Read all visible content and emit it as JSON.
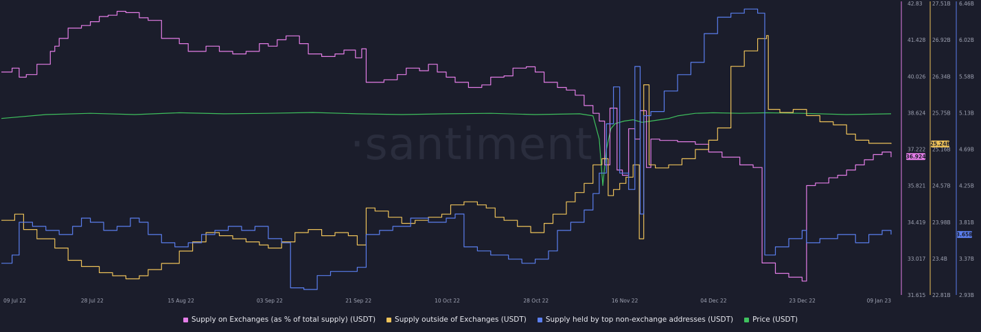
{
  "watermark": "·santiment",
  "chart_data": {
    "type": "line",
    "x_tick_labels": [
      "09 Jul 22",
      "28 Jul 22",
      "15 Aug 22",
      "03 Sep 22",
      "21 Sep 22",
      "10 Oct 22",
      "28 Oct 22",
      "16 Nov 22",
      "04 Dec 22",
      "23 Dec 22",
      "09 Jan 23"
    ],
    "axes": {
      "exchange_pct": {
        "ticks": [
          "42.83",
          "41.428",
          "40.026",
          "38.624",
          "37.222",
          "35.821",
          "34.419",
          "33.017",
          "31.615"
        ],
        "ylim": [
          31.615,
          42.83
        ]
      },
      "outside_supply": {
        "ticks": [
          "27.51B",
          "26.92B",
          "26.34B",
          "25.75B",
          "25.16B",
          "24.57B",
          "23.98B",
          "23.4B",
          "22.81B"
        ],
        "ylim": [
          22.81,
          27.51
        ],
        "unit": "B"
      },
      "top_holders": {
        "ticks": [
          "6.46B",
          "6.02B",
          "5.58B",
          "5.13B",
          "4.69B",
          "4.25B",
          "3.81B",
          "3.37B",
          "2.93B"
        ],
        "ylim": [
          2.93,
          6.46
        ],
        "unit": "B"
      }
    },
    "last_value_badges": {
      "exchange_pct": "36.924",
      "outside_supply": "25.24B",
      "top_holders": "3.65B"
    },
    "series": [
      {
        "name": "Supply on Exchanges (as % of total supply) (USDT)",
        "color": "#e57ee8",
        "axis": "exchange_pct",
        "points": [
          [
            0,
            40.2
          ],
          [
            0.012,
            40.35
          ],
          [
            0.02,
            40.0
          ],
          [
            0.028,
            40.1
          ],
          [
            0.04,
            40.5
          ],
          [
            0.055,
            41.0
          ],
          [
            0.06,
            41.2
          ],
          [
            0.065,
            41.5
          ],
          [
            0.075,
            41.9
          ],
          [
            0.09,
            42.0
          ],
          [
            0.1,
            42.15
          ],
          [
            0.11,
            42.35
          ],
          [
            0.12,
            42.4
          ],
          [
            0.13,
            42.55
          ],
          [
            0.14,
            42.5
          ],
          [
            0.155,
            42.3
          ],
          [
            0.165,
            42.2
          ],
          [
            0.18,
            41.5
          ],
          [
            0.2,
            41.3
          ],
          [
            0.21,
            41.0
          ],
          [
            0.23,
            41.2
          ],
          [
            0.245,
            41.0
          ],
          [
            0.26,
            40.9
          ],
          [
            0.275,
            41.0
          ],
          [
            0.29,
            41.3
          ],
          [
            0.3,
            41.2
          ],
          [
            0.31,
            41.45
          ],
          [
            0.32,
            41.6
          ],
          [
            0.335,
            41.3
          ],
          [
            0.345,
            40.9
          ],
          [
            0.36,
            40.8
          ],
          [
            0.375,
            40.9
          ],
          [
            0.385,
            41.05
          ],
          [
            0.398,
            40.75
          ],
          [
            0.405,
            41.1
          ],
          [
            0.41,
            39.8
          ],
          [
            0.43,
            39.9
          ],
          [
            0.445,
            40.1
          ],
          [
            0.455,
            40.35
          ],
          [
            0.47,
            40.25
          ],
          [
            0.48,
            40.5
          ],
          [
            0.49,
            40.2
          ],
          [
            0.5,
            40.0
          ],
          [
            0.51,
            39.8
          ],
          [
            0.525,
            39.6
          ],
          [
            0.54,
            39.7
          ],
          [
            0.55,
            40.0
          ],
          [
            0.565,
            40.05
          ],
          [
            0.575,
            40.35
          ],
          [
            0.59,
            40.4
          ],
          [
            0.6,
            40.2
          ],
          [
            0.61,
            39.8
          ],
          [
            0.625,
            39.6
          ],
          [
            0.635,
            39.5
          ],
          [
            0.645,
            39.3
          ],
          [
            0.655,
            38.9
          ],
          [
            0.665,
            38.6
          ],
          [
            0.672,
            38.3
          ],
          [
            0.678,
            36.6
          ],
          [
            0.684,
            38.8
          ],
          [
            0.692,
            36.4
          ],
          [
            0.698,
            36.2
          ],
          [
            0.705,
            38.0
          ],
          [
            0.712,
            37.6
          ],
          [
            0.718,
            38.7
          ],
          [
            0.725,
            36.5
          ],
          [
            0.73,
            37.6
          ],
          [
            0.74,
            37.55
          ],
          [
            0.76,
            37.5
          ],
          [
            0.78,
            37.4
          ],
          [
            0.795,
            37.1
          ],
          [
            0.81,
            36.9
          ],
          [
            0.83,
            36.6
          ],
          [
            0.845,
            36.5
          ],
          [
            0.855,
            32.8
          ],
          [
            0.87,
            32.4
          ],
          [
            0.885,
            32.25
          ],
          [
            0.9,
            32.1
          ],
          [
            0.905,
            35.8
          ],
          [
            0.915,
            35.9
          ],
          [
            0.93,
            36.1
          ],
          [
            0.94,
            36.2
          ],
          [
            0.95,
            36.4
          ],
          [
            0.96,
            36.6
          ],
          [
            0.97,
            36.8
          ],
          [
            0.98,
            37.0
          ],
          [
            0.99,
            37.1
          ],
          [
            1.0,
            36.9
          ]
        ]
      },
      {
        "name": "Supply outside of Exchanges (USDT)",
        "color": "#efc35a",
        "axis": "outside_supply",
        "points": [
          [
            0,
            24.0
          ],
          [
            0.015,
            24.1
          ],
          [
            0.025,
            23.85
          ],
          [
            0.04,
            23.7
          ],
          [
            0.06,
            23.55
          ],
          [
            0.075,
            23.35
          ],
          [
            0.09,
            23.25
          ],
          [
            0.11,
            23.15
          ],
          [
            0.125,
            23.1
          ],
          [
            0.14,
            23.05
          ],
          [
            0.155,
            23.1
          ],
          [
            0.165,
            23.2
          ],
          [
            0.18,
            23.3
          ],
          [
            0.2,
            23.5
          ],
          [
            0.215,
            23.65
          ],
          [
            0.23,
            23.8
          ],
          [
            0.245,
            23.75
          ],
          [
            0.26,
            23.7
          ],
          [
            0.275,
            23.65
          ],
          [
            0.29,
            23.6
          ],
          [
            0.3,
            23.55
          ],
          [
            0.315,
            23.65
          ],
          [
            0.33,
            23.8
          ],
          [
            0.345,
            23.85
          ],
          [
            0.36,
            23.75
          ],
          [
            0.375,
            23.8
          ],
          [
            0.39,
            23.75
          ],
          [
            0.4,
            23.6
          ],
          [
            0.41,
            24.2
          ],
          [
            0.42,
            24.15
          ],
          [
            0.435,
            24.05
          ],
          [
            0.45,
            23.95
          ],
          [
            0.465,
            24.0
          ],
          [
            0.48,
            24.05
          ],
          [
            0.495,
            24.1
          ],
          [
            0.505,
            24.25
          ],
          [
            0.52,
            24.3
          ],
          [
            0.535,
            24.25
          ],
          [
            0.545,
            24.2
          ],
          [
            0.555,
            24.05
          ],
          [
            0.565,
            24.0
          ],
          [
            0.58,
            23.9
          ],
          [
            0.595,
            23.8
          ],
          [
            0.61,
            23.95
          ],
          [
            0.62,
            24.1
          ],
          [
            0.635,
            24.3
          ],
          [
            0.645,
            24.45
          ],
          [
            0.655,
            24.6
          ],
          [
            0.665,
            24.9
          ],
          [
            0.675,
            25.0
          ],
          [
            0.682,
            24.4
          ],
          [
            0.688,
            24.5
          ],
          [
            0.695,
            24.6
          ],
          [
            0.702,
            24.7
          ],
          [
            0.71,
            24.9
          ],
          [
            0.717,
            23.7
          ],
          [
            0.722,
            26.2
          ],
          [
            0.728,
            24.9
          ],
          [
            0.735,
            24.85
          ],
          [
            0.75,
            24.9
          ],
          [
            0.765,
            25.0
          ],
          [
            0.78,
            25.15
          ],
          [
            0.795,
            25.3
          ],
          [
            0.805,
            25.5
          ],
          [
            0.82,
            26.5
          ],
          [
            0.835,
            26.75
          ],
          [
            0.85,
            26.95
          ],
          [
            0.86,
            27.0
          ],
          [
            0.862,
            25.8
          ],
          [
            0.875,
            25.75
          ],
          [
            0.89,
            25.8
          ],
          [
            0.905,
            25.7
          ],
          [
            0.92,
            25.6
          ],
          [
            0.935,
            25.55
          ],
          [
            0.95,
            25.4
          ],
          [
            0.96,
            25.3
          ],
          [
            0.975,
            25.25
          ],
          [
            0.99,
            25.25
          ],
          [
            1.0,
            25.24
          ]
        ]
      },
      {
        "name": "Supply held by top non-exchange addresses (USDT)",
        "color": "#5b7ff0",
        "axis": "top_holders",
        "points": [
          [
            0,
            3.3
          ],
          [
            0.012,
            3.4
          ],
          [
            0.02,
            3.8
          ],
          [
            0.035,
            3.75
          ],
          [
            0.05,
            3.7
          ],
          [
            0.065,
            3.65
          ],
          [
            0.08,
            3.75
          ],
          [
            0.09,
            3.85
          ],
          [
            0.1,
            3.8
          ],
          [
            0.115,
            3.7
          ],
          [
            0.13,
            3.75
          ],
          [
            0.145,
            3.85
          ],
          [
            0.155,
            3.8
          ],
          [
            0.165,
            3.65
          ],
          [
            0.18,
            3.55
          ],
          [
            0.195,
            3.5
          ],
          [
            0.21,
            3.55
          ],
          [
            0.225,
            3.65
          ],
          [
            0.24,
            3.7
          ],
          [
            0.255,
            3.75
          ],
          [
            0.27,
            3.7
          ],
          [
            0.285,
            3.75
          ],
          [
            0.3,
            3.6
          ],
          [
            0.315,
            3.55
          ],
          [
            0.325,
            3.0
          ],
          [
            0.34,
            2.98
          ],
          [
            0.355,
            3.15
          ],
          [
            0.37,
            3.2
          ],
          [
            0.385,
            3.2
          ],
          [
            0.4,
            3.25
          ],
          [
            0.41,
            3.65
          ],
          [
            0.425,
            3.7
          ],
          [
            0.44,
            3.75
          ],
          [
            0.46,
            3.85
          ],
          [
            0.48,
            3.8
          ],
          [
            0.5,
            3.85
          ],
          [
            0.51,
            3.9
          ],
          [
            0.52,
            3.5
          ],
          [
            0.535,
            3.45
          ],
          [
            0.55,
            3.4
          ],
          [
            0.57,
            3.35
          ],
          [
            0.585,
            3.3
          ],
          [
            0.6,
            3.35
          ],
          [
            0.615,
            3.45
          ],
          [
            0.625,
            3.7
          ],
          [
            0.64,
            3.8
          ],
          [
            0.655,
            3.95
          ],
          [
            0.665,
            4.15
          ],
          [
            0.672,
            4.4
          ],
          [
            0.68,
            5.0
          ],
          [
            0.688,
            5.45
          ],
          [
            0.695,
            4.4
          ],
          [
            0.705,
            4.2
          ],
          [
            0.712,
            5.7
          ],
          [
            0.718,
            3.9
          ],
          [
            0.722,
            5.1
          ],
          [
            0.73,
            5.15
          ],
          [
            0.745,
            5.4
          ],
          [
            0.76,
            5.6
          ],
          [
            0.775,
            5.75
          ],
          [
            0.79,
            6.1
          ],
          [
            0.805,
            6.3
          ],
          [
            0.82,
            6.35
          ],
          [
            0.835,
            6.4
          ],
          [
            0.85,
            6.35
          ],
          [
            0.858,
            3.4
          ],
          [
            0.87,
            3.5
          ],
          [
            0.885,
            3.6
          ],
          [
            0.9,
            3.7
          ],
          [
            0.905,
            3.55
          ],
          [
            0.92,
            3.6
          ],
          [
            0.94,
            3.65
          ],
          [
            0.96,
            3.55
          ],
          [
            0.975,
            3.65
          ],
          [
            0.99,
            3.7
          ],
          [
            1.0,
            3.65
          ]
        ]
      },
      {
        "name": "Price (USDT)",
        "color": "#3fc25e",
        "axis": "price",
        "points": [
          [
            0,
            38.4
          ],
          [
            0.05,
            38.55
          ],
          [
            0.1,
            38.6
          ],
          [
            0.15,
            38.55
          ],
          [
            0.2,
            38.62
          ],
          [
            0.25,
            38.58
          ],
          [
            0.3,
            38.6
          ],
          [
            0.35,
            38.63
          ],
          [
            0.4,
            38.58
          ],
          [
            0.45,
            38.55
          ],
          [
            0.5,
            38.58
          ],
          [
            0.55,
            38.6
          ],
          [
            0.6,
            38.55
          ],
          [
            0.65,
            38.58
          ],
          [
            0.665,
            38.5
          ],
          [
            0.672,
            37.6
          ],
          [
            0.676,
            35.8
          ],
          [
            0.68,
            37.2
          ],
          [
            0.685,
            38.0
          ],
          [
            0.69,
            38.2
          ],
          [
            0.7,
            38.3
          ],
          [
            0.71,
            38.35
          ],
          [
            0.72,
            38.25
          ],
          [
            0.73,
            38.3
          ],
          [
            0.74,
            38.35
          ],
          [
            0.75,
            38.4
          ],
          [
            0.76,
            38.5
          ],
          [
            0.78,
            38.6
          ],
          [
            0.8,
            38.62
          ],
          [
            0.83,
            38.6
          ],
          [
            0.86,
            38.62
          ],
          [
            0.9,
            38.6
          ],
          [
            0.95,
            38.55
          ],
          [
            1.0,
            38.58
          ]
        ]
      }
    ]
  }
}
